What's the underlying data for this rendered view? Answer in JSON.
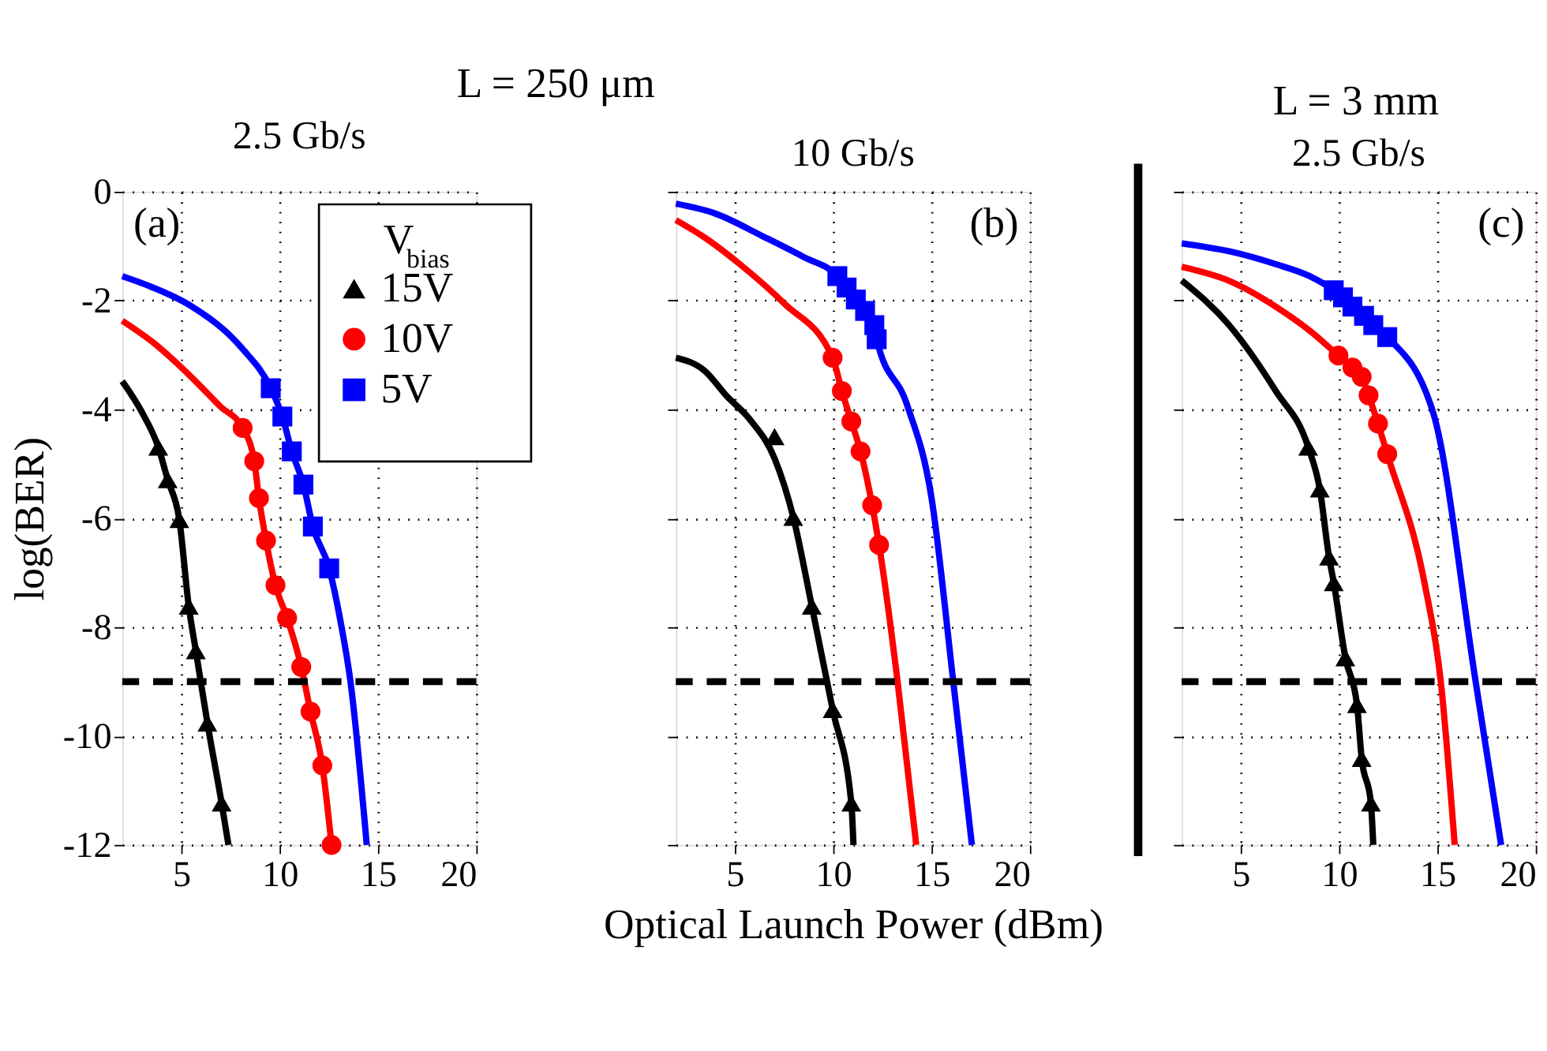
{
  "chart_data": [
    {
      "type": "line",
      "title": "L = 250 μm",
      "subtitle": "2.5 Gb/s",
      "ylabel": "log(BER)",
      "xlim": [
        2,
        20
      ],
      "ylim": [
        -12,
        0
      ],
      "xticks": [
        5,
        10,
        15,
        20
      ],
      "yticks": [
        0,
        -2,
        -4,
        -6,
        -8,
        -10,
        -12
      ],
      "grid": true,
      "legend": "top right",
      "legend_title": "V$_{bias}$",
      "annotations": [
        "(a)"
      ],
      "ref_lines": [
        {
          "axis": "y",
          "value": -9,
          "color": "#000000",
          "line_style": "dashed"
        }
      ],
      "series": [
        {
          "marker": "none",
          "color": "#000000",
          "x": [
            2,
            3,
            3.83,
            4.31,
            4.9,
            5.38,
            5.74,
            6.33,
            7.05,
            7.4
          ],
          "values": [
            -3.48,
            -4.05,
            -4.69,
            -5.29,
            -6.02,
            -7.61,
            -8.43,
            -9.76,
            -11.23,
            -12
          ]
        },
        {
          "type": "scatter",
          "marker": "triangle",
          "name": "15V",
          "color": "#000000",
          "x": [
            3.83,
            4.31,
            4.9,
            5.38,
            5.74,
            6.33,
            7.05
          ],
          "values": [
            -4.69,
            -5.29,
            -6.02,
            -7.61,
            -8.43,
            -9.76,
            -11.23
          ]
        },
        {
          "marker": "none",
          "color": "#ff0000",
          "x": [
            2,
            3.5,
            5.5,
            7,
            8.12,
            8.71,
            8.95,
            9.31,
            9.79,
            10.38,
            11.1,
            11.57,
            12.17,
            12.64
          ],
          "values": [
            -2.37,
            -2.75,
            -3.4,
            -3.95,
            -4.34,
            -4.95,
            -5.63,
            -6.41,
            -7.23,
            -7.83,
            -8.73,
            -9.55,
            -10.54,
            -12
          ]
        },
        {
          "type": "scatter",
          "marker": "circle",
          "name": "10V",
          "color": "#ff0000",
          "x": [
            8.12,
            8.71,
            8.95,
            9.31,
            9.79,
            10.38,
            11.1,
            11.57,
            12.17,
            12.64
          ],
          "values": [
            -4.34,
            -4.95,
            -5.63,
            -6.41,
            -7.23,
            -7.83,
            -8.73,
            -9.55,
            -10.54,
            -12
          ]
        },
        {
          "marker": "none",
          "color": "#0000ff",
          "x": [
            2,
            3.5,
            5.5,
            8.1,
            9.55,
            10.14,
            10.62,
            11.21,
            11.69,
            12.52,
            13.1,
            13.6,
            14.43
          ],
          "values": [
            -1.55,
            -1.75,
            -2.1,
            -2.88,
            -3.61,
            -4.13,
            -4.77,
            -5.38,
            -6.15,
            -6.92,
            -7.9,
            -8.99,
            -12
          ]
        },
        {
          "type": "scatter",
          "marker": "square",
          "name": "5V",
          "color": "#0000ff",
          "x": [
            9.55,
            10.14,
            10.62,
            11.21,
            11.69,
            12.52
          ],
          "values": [
            -3.61,
            -4.13,
            -4.77,
            -5.38,
            -6.15,
            -6.92
          ]
        }
      ]
    },
    {
      "type": "line",
      "subtitle": "10 Gb/s",
      "xlabel": "Optical Launch Power (dBm)",
      "xlim": [
        2,
        20
      ],
      "ylim": [
        -12,
        0
      ],
      "xticks": [
        5,
        10,
        15,
        20
      ],
      "yticks": [
        0,
        -2,
        -4,
        -6,
        -8,
        -10,
        -12
      ],
      "grid": true,
      "tick_labels": "x",
      "annotations": [
        "(b)"
      ],
      "ref_lines": [
        {
          "axis": "y",
          "value": -9,
          "color": "#000000",
          "line_style": "dashed"
        }
      ],
      "series": [
        {
          "marker": "none",
          "color": "#000000",
          "x": [
            2,
            3.5,
            4.55,
            5.8,
            7.02,
            7.97,
            8.91,
            9.97,
            10.92,
            11.03
          ],
          "values": [
            -3.05,
            -3.3,
            -3.74,
            -4.2,
            -4.9,
            -5.98,
            -7.61,
            -9.51,
            -11.23,
            -12
          ]
        },
        {
          "type": "scatter",
          "marker": "triangle",
          "color": "#000000",
          "x": [
            7.02,
            7.97,
            8.91,
            9.97,
            10.92
          ],
          "values": [
            -4.5,
            -5.98,
            -7.61,
            -9.51,
            -11.23
          ]
        },
        {
          "marker": "none",
          "color": "#ff0000",
          "x": [
            2,
            3.5,
            5.25,
            7.5,
            9.97,
            10.44,
            10.92,
            11.39,
            11.98,
            12.33,
            13.27,
            14.22
          ],
          "values": [
            -0.52,
            -0.85,
            -1.33,
            -2.05,
            -3.05,
            -3.66,
            -4.22,
            -4.77,
            -5.76,
            -6.49,
            -8.99,
            -12
          ]
        },
        {
          "type": "scatter",
          "marker": "circle",
          "color": "#ff0000",
          "x": [
            9.97,
            10.44,
            10.92,
            11.39,
            11.98,
            12.33
          ],
          "values": [
            -3.05,
            -3.66,
            -4.22,
            -4.77,
            -5.76,
            -6.49
          ]
        },
        {
          "marker": "none",
          "color": "#0000ff",
          "x": [
            2,
            4,
            6.43,
            8.5,
            10.21,
            10.68,
            11.15,
            11.62,
            12.09,
            12.21,
            13.75,
            15,
            16.1,
            17.05
          ],
          "values": [
            -0.22,
            -0.4,
            -0.82,
            -1.2,
            -1.55,
            -1.76,
            -1.98,
            -2.19,
            -2.45,
            -2.71,
            -3.91,
            -5.63,
            -8.99,
            -12
          ]
        },
        {
          "type": "scatter",
          "marker": "square",
          "color": "#0000ff",
          "x": [
            10.21,
            10.68,
            11.15,
            11.62,
            12.09,
            12.21
          ],
          "values": [
            -1.55,
            -1.76,
            -1.98,
            -2.19,
            -2.45,
            -2.71
          ]
        }
      ]
    },
    {
      "type": "line",
      "title": "L = 3 mm",
      "subtitle": "2.5 Gb/s",
      "xlim": [
        2,
        20
      ],
      "ylim": [
        -12,
        0
      ],
      "xticks": [
        5,
        10,
        15,
        20
      ],
      "yticks": [
        0,
        -2,
        -4,
        -6,
        -8,
        -10,
        -12
      ],
      "grid": true,
      "tick_labels": "x",
      "annotations": [
        "(c)"
      ],
      "ref_lines": [
        {
          "axis": "y",
          "value": -9,
          "color": "#000000",
          "line_style": "dashed"
        }
      ],
      "series": [
        {
          "marker": "none",
          "color": "#000000",
          "x": [
            2,
            4.41,
            6.78,
            8.43,
            9.02,
            9.49,
            9.73,
            10.32,
            10.91,
            11.15,
            11.62,
            11.74
          ],
          "values": [
            -1.63,
            -2.45,
            -3.66,
            -4.69,
            -5.46,
            -6.71,
            -7.18,
            -8.56,
            -9.42,
            -10.41,
            -11.23,
            -12
          ]
        },
        {
          "type": "scatter",
          "marker": "triangle",
          "color": "#000000",
          "x": [
            8.43,
            9.02,
            9.49,
            9.73,
            10.32,
            10.91,
            11.15,
            11.62
          ],
          "values": [
            -4.69,
            -5.46,
            -6.71,
            -7.18,
            -8.56,
            -9.42,
            -10.41,
            -11.23
          ]
        },
        {
          "marker": "none",
          "color": "#ff0000",
          "x": [
            2,
            4.5,
            6.78,
            8.5,
            9.97,
            10.68,
            11.15,
            11.5,
            11.98,
            12.45,
            14.34,
            15.17,
            15.88
          ],
          "values": [
            -1.38,
            -1.65,
            -2.11,
            -2.55,
            -3.01,
            -3.23,
            -3.4,
            -3.74,
            -4.26,
            -4.82,
            -7.18,
            -8.99,
            -12
          ]
        },
        {
          "type": "scatter",
          "marker": "circle",
          "color": "#ff0000",
          "x": [
            9.97,
            10.68,
            11.15,
            11.5,
            11.98,
            12.45
          ],
          "values": [
            -3.01,
            -3.23,
            -3.4,
            -3.74,
            -4.26,
            -4.82
          ]
        },
        {
          "marker": "none",
          "color": "#0000ff",
          "x": [
            2,
            4.5,
            6.78,
            8.5,
            9.73,
            10.2,
            10.68,
            11.27,
            11.74,
            12.45,
            14.81,
            16.94,
            18.24
          ],
          "values": [
            -0.95,
            -1.1,
            -1.33,
            -1.55,
            -1.81,
            -1.94,
            -2.11,
            -2.28,
            -2.45,
            -2.67,
            -4.09,
            -8.99,
            -12
          ]
        },
        {
          "type": "scatter",
          "marker": "square",
          "color": "#0000ff",
          "x": [
            9.73,
            10.2,
            10.68,
            11.27,
            11.74,
            12.45
          ],
          "values": [
            -1.81,
            -1.94,
            -2.11,
            -2.28,
            -2.45,
            -2.67
          ]
        }
      ]
    }
  ]
}
